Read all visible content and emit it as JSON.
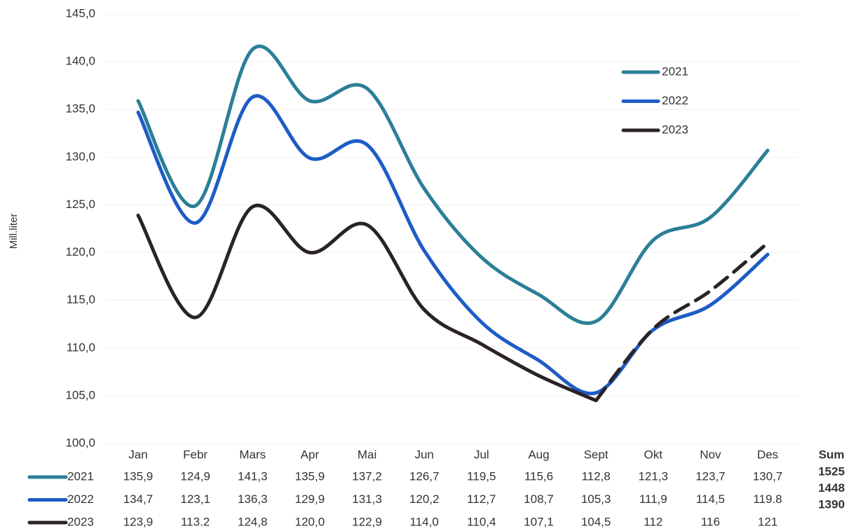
{
  "chart_data": {
    "type": "line",
    "y_label": "Mill.liter",
    "categories": [
      "Jan",
      "Febr",
      "Mars",
      "Apr",
      "Mai",
      "Jun",
      "Jul",
      "Aug",
      "Sept",
      "Okt",
      "Nov",
      "Des"
    ],
    "ylim": [
      100,
      145
    ],
    "yticks": [
      {
        "value": 100,
        "label": "100,0"
      },
      {
        "value": 105,
        "label": "105,0"
      },
      {
        "value": 110,
        "label": "110,0"
      },
      {
        "value": 115,
        "label": "115,0"
      },
      {
        "value": 120,
        "label": "120,0"
      },
      {
        "value": 125,
        "label": "125,0"
      },
      {
        "value": 130,
        "label": "130,0"
      },
      {
        "value": 135,
        "label": "135,0"
      },
      {
        "value": 140,
        "label": "140,0"
      },
      {
        "value": 145,
        "label": "145,0"
      }
    ],
    "grid": true,
    "legend": "upper right",
    "sum_header": "Sum",
    "series": [
      {
        "name": "2021",
        "color": "#2b7f97",
        "values": [
          135.9,
          124.9,
          141.3,
          135.9,
          137.2,
          126.7,
          119.5,
          115.6,
          112.8,
          121.3,
          123.7,
          130.7
        ],
        "value_labels": [
          "135,9",
          "124,9",
          "141,3",
          "135,9",
          "137,2",
          "126,7",
          "119,5",
          "115,6",
          "112,8",
          "121,3",
          "123,7",
          "130,7"
        ],
        "sum": 1525
      },
      {
        "name": "2022",
        "color": "#1d5cc6",
        "values": [
          134.7,
          123.1,
          136.3,
          129.9,
          131.3,
          120.2,
          112.7,
          108.7,
          105.3,
          111.9,
          114.5,
          119.8
        ],
        "value_labels": [
          "134,7",
          "123,1",
          "136,3",
          "129,9",
          "131,3",
          "120,2",
          "112,7",
          "108,7",
          "105,3",
          "111,9",
          "114,5",
          "119.8"
        ],
        "sum": 1448
      },
      {
        "name": "2023",
        "color": "#2a2326",
        "values": [
          123.9,
          113.2,
          124.8,
          120.0,
          122.9,
          114.0,
          110.4,
          107.1,
          104.5,
          112,
          116,
          121
        ],
        "value_labels": [
          "123,9",
          "113.2",
          "124,8",
          "120,0",
          "122,9",
          "114,0",
          "110,4",
          "107,1",
          "104,5",
          "112",
          "116",
          "121"
        ],
        "sum": 1390,
        "dash_from": 8
      }
    ]
  }
}
